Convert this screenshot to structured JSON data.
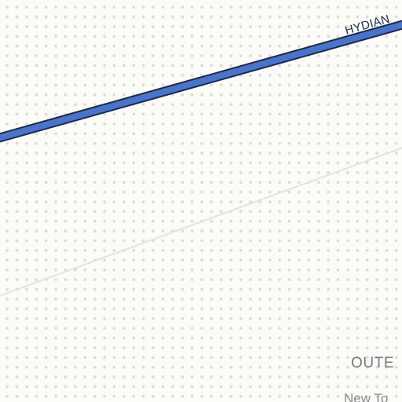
{
  "map": {
    "colors": {
      "background": "#fbfbf8",
      "dot": "#dcdcd2",
      "road_fill": "#4a74c9",
      "road_casing": "#1a2a4a",
      "minor_road": "#e2e2df",
      "label": "#1f2b4d",
      "place_label": "#7a7a7a"
    },
    "roads": [
      {
        "name": "HYDIAN",
        "class": "highway"
      },
      {
        "name": "",
        "class": "minor"
      }
    ],
    "places": [
      {
        "label": "OUTE",
        "type": "district"
      },
      {
        "label": "New To",
        "type": "town"
      }
    ]
  }
}
